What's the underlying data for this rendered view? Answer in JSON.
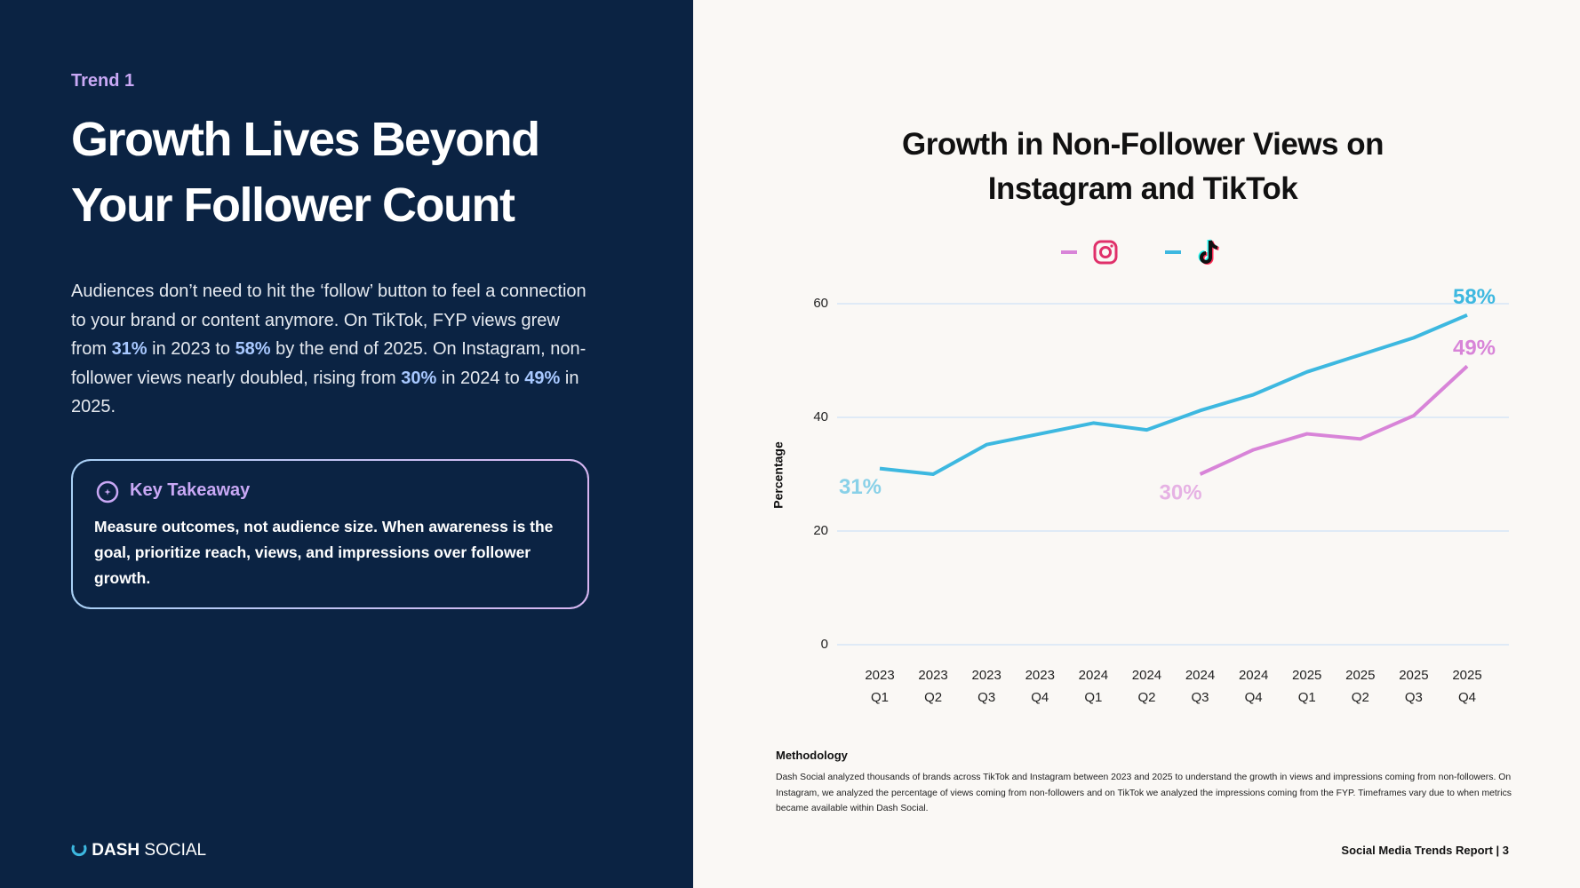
{
  "eyebrow": "Trend 1",
  "headline": "Growth Lives Beyond Your Follower Count",
  "body": [
    "Audiences don’t need to hit the ‘follow’ button to feel a connection to your brand or content anymore. On TikTok, FYP views grew from ",
    "31%",
    " in 2023 to ",
    "58%",
    " by the end of 2025. On Instagram, non-follower views nearly doubled, rising from ",
    "30%",
    " in 2024 to ",
    "49%",
    " in 2025."
  ],
  "takeaway": {
    "title": "Key Takeaway",
    "text": "Measure outcomes, not audience size. When awareness is the goal, prioritize reach, views, and impressions over follower growth."
  },
  "logo": [
    "DASH",
    "SOCIAL"
  ],
  "methodology": {
    "title": "Methodology",
    "text": "Dash Social analyzed thousands of brands across TikTok and Instagram between 2023 and 2025 to understand the growth in views and impressions coming from non-followers. On Instagram, we analyzed the percentage of views coming from non-followers and on TikTok we analyzed the impressions coming from the FYP. Timeframes vary due to when metrics became available within Dash Social."
  },
  "footer": "Social Media Trends Report | 3",
  "chart_data": {
    "type": "line",
    "title": "Growth in Non-Follower Views on Instagram and TikTok",
    "y_label": "Percentage",
    "categories": [
      "2023 Q1",
      "2023 Q2",
      "2023 Q3",
      "2023 Q4",
      "2024 Q1",
      "2024 Q2",
      "2024 Q3",
      "2024 Q4",
      "2025 Q1",
      "2025 Q2",
      "2025 Q3",
      "2025 Q4"
    ],
    "series": [
      {
        "color": "#d884d8",
        "values": [
          null,
          null,
          null,
          null,
          null,
          null,
          30,
          34.3,
          37.1,
          36.2,
          40.3,
          49
        ],
        "value_labels": [
          null,
          null,
          null,
          null,
          null,
          null,
          "30%",
          null,
          null,
          null,
          null,
          "49%"
        ]
      },
      {
        "color": "#3db8e0",
        "values": [
          31,
          30,
          35.2,
          37.1,
          39,
          37.8,
          41.2,
          44,
          48,
          51,
          54,
          58
        ],
        "value_labels": [
          "31%",
          null,
          null,
          null,
          null,
          null,
          null,
          null,
          null,
          null,
          null,
          "58%"
        ]
      }
    ],
    "ylim": [
      0,
      60
    ],
    "yticks": [
      0,
      20,
      40,
      60
    ],
    "grid": true
  }
}
